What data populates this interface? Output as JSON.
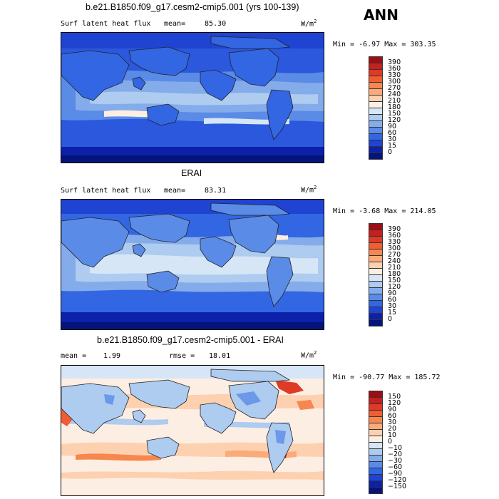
{
  "season_label": "ANN",
  "panels": [
    {
      "title": "b.e21.B1850.f09_g17.cesm2-cmip5.001 (yrs 100-139)",
      "field_label": "Surf latent heat flux",
      "stat_label": "mean=",
      "stat_value": "85.30",
      "units": "W/m",
      "units_sup": "2",
      "minmax": "Min =  -6.97 Max = 303.35",
      "colorbar_ticks": [
        "390",
        "360",
        "330",
        "300",
        "270",
        "240",
        "210",
        "180",
        "150",
        "120",
        "90",
        "60",
        "30",
        "15",
        "0"
      ],
      "colorbar_colors": [
        "#9e0d14",
        "#c4201f",
        "#de3a25",
        "#ef5d33",
        "#f6874f",
        "#fbab7a",
        "#fdd0b0",
        "#fdeee3",
        "#d7e6f7",
        "#aecbf0",
        "#84aceb",
        "#5a8be6",
        "#3366e3",
        "#1f44d2",
        "#0d20aa",
        "#051478"
      ]
    },
    {
      "title": "ERAI",
      "field_label": "Surf latent heat flux",
      "stat_label": "mean=",
      "stat_value": "83.31",
      "units": "W/m",
      "units_sup": "2",
      "minmax": "Min =  -3.68 Max = 214.05",
      "colorbar_ticks": [
        "390",
        "360",
        "330",
        "300",
        "270",
        "240",
        "210",
        "180",
        "150",
        "120",
        "90",
        "60",
        "30",
        "15",
        "0"
      ],
      "colorbar_colors": [
        "#9e0d14",
        "#c4201f",
        "#de3a25",
        "#ef5d33",
        "#f6874f",
        "#fbab7a",
        "#fdd0b0",
        "#fdeee3",
        "#d7e6f7",
        "#aecbf0",
        "#84aceb",
        "#5a8be6",
        "#3366e3",
        "#1f44d2",
        "#0d20aa",
        "#051478"
      ]
    },
    {
      "title": "b.e21.B1850.f09_g17.cesm2-cmip5.001 - ERAI",
      "field_label": "mean =",
      "stat_label": "",
      "stat_value": "1.99",
      "rmse_label": "rmse =",
      "rmse_value": "18.01",
      "units": "W/m",
      "units_sup": "2",
      "minmax": "Min = -90.77 Max = 185.72",
      "colorbar_ticks": [
        "150",
        "120",
        "90",
        "60",
        "30",
        "20",
        "10",
        "0",
        "−10",
        "−20",
        "−30",
        "−60",
        "−90",
        "−120",
        "−150"
      ],
      "colorbar_colors": [
        "#9e0d14",
        "#c4201f",
        "#de3a25",
        "#ef5d33",
        "#f6874f",
        "#fbab7a",
        "#fdd0b0",
        "#fdeee3",
        "#d7e6f7",
        "#aecbf0",
        "#84aceb",
        "#5a8be6",
        "#3366e3",
        "#1f44d2",
        "#0d20aa",
        "#051478"
      ]
    }
  ]
}
